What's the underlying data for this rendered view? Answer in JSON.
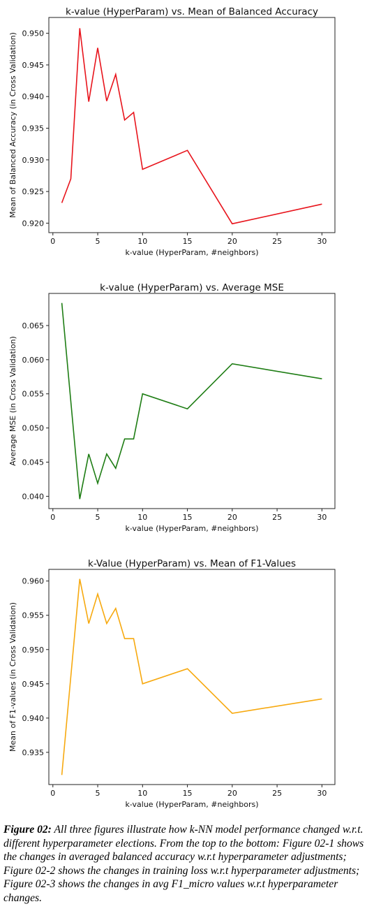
{
  "chart_data": [
    {
      "type": "line",
      "title": "k-value (HyperParam) vs. Mean of Balanced Accuracy",
      "xlabel": "k-value (HyperParam, #neighbors)",
      "ylabel": "Mean of Balanced Accuracy (in Cross Validation)",
      "color": "#e8141c",
      "xlim": [
        -0.45,
        31.45
      ],
      "ylim": [
        0.9185,
        0.9525
      ],
      "xticks": [
        0,
        5,
        10,
        15,
        20,
        25,
        30
      ],
      "xtick_labels": [
        "0",
        "5",
        "10",
        "15",
        "20",
        "25",
        "30"
      ],
      "yticks": [
        0.92,
        0.925,
        0.93,
        0.935,
        0.94,
        0.945,
        0.95
      ],
      "ytick_labels": [
        "0.920",
        "0.925",
        "0.930",
        "0.935",
        "0.940",
        "0.945",
        "0.950"
      ],
      "grid": false,
      "x": [
        1,
        2,
        3,
        4,
        5,
        6,
        7,
        8,
        9,
        10,
        15,
        20,
        30
      ],
      "y": [
        0.9232,
        0.927,
        0.9508,
        0.9392,
        0.9477,
        0.9393,
        0.9435,
        0.9363,
        0.9375,
        0.9285,
        0.9315,
        0.9199,
        0.923
      ]
    },
    {
      "type": "line",
      "title": "k-value (HyperParam) vs. Average MSE",
      "xlabel": "k-value (HyperParam, #neighbors)",
      "ylabel": "Average MSE (in Cross Validation)",
      "color": "#1e7d14",
      "xlim": [
        -0.45,
        31.45
      ],
      "ylim": [
        0.0382,
        0.0697
      ],
      "xticks": [
        0,
        5,
        10,
        15,
        20,
        25,
        30
      ],
      "xtick_labels": [
        "0",
        "5",
        "10",
        "15",
        "20",
        "25",
        "30"
      ],
      "yticks": [
        0.04,
        0.045,
        0.05,
        0.055,
        0.06,
        0.065
      ],
      "ytick_labels": [
        "0.040",
        "0.045",
        "0.050",
        "0.055",
        "0.060",
        "0.065"
      ],
      "grid": false,
      "x": [
        1,
        3,
        4,
        5,
        6,
        7,
        8,
        9,
        10,
        15,
        20,
        30
      ],
      "y": [
        0.0683,
        0.0396,
        0.0462,
        0.0419,
        0.0462,
        0.0441,
        0.0484,
        0.0484,
        0.055,
        0.0528,
        0.0594,
        0.0572
      ]
    },
    {
      "type": "line",
      "title": "k-Value (HyperParam) vs. Mean of F1-Values",
      "xlabel": "k-value (HyperParam, #neighbors)",
      "ylabel": "Mean of  F1-values (in Cross Validation)",
      "color": "#f7a90f",
      "xlim": [
        -0.45,
        31.45
      ],
      "ylim": [
        0.9303,
        0.9617
      ],
      "xticks": [
        0,
        5,
        10,
        15,
        20,
        25,
        30
      ],
      "xtick_labels": [
        "0",
        "5",
        "10",
        "15",
        "20",
        "25",
        "30"
      ],
      "yticks": [
        0.935,
        0.94,
        0.945,
        0.95,
        0.955,
        0.96
      ],
      "ytick_labels": [
        "0.935",
        "0.940",
        "0.945",
        "0.950",
        "0.955",
        "0.960"
      ],
      "grid": false,
      "x": [
        1,
        3,
        4,
        5,
        6,
        7,
        8,
        9,
        10,
        15,
        20,
        30
      ],
      "y": [
        0.9317,
        0.9603,
        0.9538,
        0.9581,
        0.9538,
        0.956,
        0.9516,
        0.9516,
        0.945,
        0.9472,
        0.9407,
        0.9428
      ]
    }
  ],
  "caption": {
    "label": "Figure 02:",
    "text": " All three figures illustrate how k-NN model performance changed w.r.t. different hyperparameter elections. From the top to the bottom: Figure 02-1 shows the changes in averaged balanced accuracy w.r.t hyperparameter adjustments; Figure 02-2 shows the changes in training loss w.r.t hyperparameter adjustments; Figure 02-3 shows the changes in avg F1_micro values w.r.t hyperparameter changes."
  }
}
